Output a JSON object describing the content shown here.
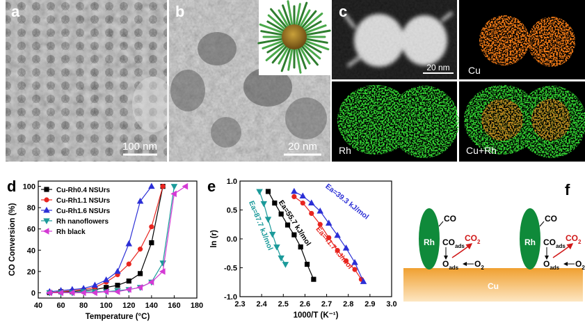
{
  "panels": {
    "a": {
      "label": "a",
      "scale_bar": "100 nm"
    },
    "b": {
      "label": "b",
      "scale_bar": "20 nm"
    },
    "c": {
      "label": "c",
      "scale_bar": "20 nm",
      "maps": [
        "Cu",
        "Rh",
        "Cu+Rh"
      ]
    },
    "d": {
      "label": "d"
    },
    "e": {
      "label": "e"
    },
    "f": {
      "label": "f"
    }
  },
  "chart_data": [
    {
      "type": "line",
      "xlabel": "Temperature (°C)",
      "ylabel": "CO Conversion (%)",
      "xlim": [
        40,
        180
      ],
      "xticks": [
        40,
        60,
        80,
        100,
        120,
        140,
        160,
        180
      ],
      "ylim": [
        -5,
        105
      ],
      "yticks": [
        0,
        20,
        40,
        60,
        80,
        100
      ],
      "legend": "upper left",
      "series": [
        {
          "name": "Cu-Rh0.4 NSUrs",
          "color": "#000000",
          "marker": "square",
          "x": [
            50,
            60,
            70,
            80,
            90,
            100,
            110,
            120,
            130,
            140,
            150
          ],
          "values": [
            0,
            1,
            1,
            2,
            3,
            5,
            7,
            11,
            18,
            47,
            100
          ]
        },
        {
          "name": "Cu-Rh1.1 NSUrs",
          "color": "#e8251f",
          "marker": "circle",
          "x": [
            50,
            60,
            70,
            80,
            90,
            100,
            110,
            120,
            130,
            140,
            150
          ],
          "values": [
            0,
            1,
            2,
            3,
            5,
            10,
            17,
            27,
            41,
            62,
            100
          ]
        },
        {
          "name": "Cu-Rh1.6 NSUrs",
          "color": "#2b2fd6",
          "marker": "triangle-up",
          "x": [
            50,
            60,
            70,
            80,
            90,
            100,
            110,
            120,
            130,
            140
          ],
          "values": [
            1,
            2,
            3,
            4,
            7,
            12,
            20,
            46,
            86,
            100
          ]
        },
        {
          "name": "Rh nanoflowers",
          "color": "#1b9a9a",
          "marker": "triangle-down",
          "x": [
            50,
            60,
            70,
            80,
            90,
            100,
            110,
            120,
            130,
            140,
            150,
            160
          ],
          "values": [
            0,
            0,
            0,
            1,
            1,
            1,
            2,
            3,
            5,
            10,
            28,
            100
          ]
        },
        {
          "name": "Rh black",
          "color": "#d43ad4",
          "marker": "triangle-left",
          "x": [
            50,
            60,
            70,
            80,
            90,
            100,
            110,
            120,
            130,
            140,
            150,
            160,
            170
          ],
          "values": [
            0,
            0,
            0,
            0,
            0,
            1,
            1,
            3,
            5,
            10,
            20,
            93,
            100
          ]
        }
      ]
    },
    {
      "type": "line",
      "xlabel": "1000/T (K⁻¹)",
      "ylabel": "ln (r)",
      "xlim": [
        2.3,
        3.0
      ],
      "xticks": [
        2.3,
        2.4,
        2.5,
        2.6,
        2.7,
        2.8,
        2.9,
        {
          "value": 3,
          "label": "3.0"
        }
      ],
      "ylim": [
        -1,
        1
      ],
      "yticks": [
        {
          "value": -1,
          "label": "-1.0"
        },
        -0.5,
        {
          "value": 0,
          "label": "0.0"
        },
        0.5,
        {
          "value": 1,
          "label": "1.0"
        }
      ],
      "series": [
        {
          "color": "#1b9a9a",
          "marker": "triangle-down",
          "x": [
            2.39,
            2.41,
            2.43,
            2.45,
            2.47,
            2.49,
            2.51
          ],
          "values": [
            0.82,
            0.61,
            0.34,
            0.08,
            -0.14,
            -0.33,
            -0.44
          ]
        },
        {
          "color": "#000000",
          "marker": "square",
          "x": [
            2.43,
            2.46,
            2.49,
            2.52,
            2.55,
            2.58,
            2.61,
            2.64
          ],
          "values": [
            0.82,
            0.62,
            0.43,
            0.24,
            0.07,
            -0.14,
            -0.44,
            -0.7
          ]
        },
        {
          "color": "#e8251f",
          "marker": "circle",
          "x": [
            2.55,
            2.59,
            2.63,
            2.67,
            2.71,
            2.75,
            2.79,
            2.83,
            2.86
          ],
          "values": [
            0.73,
            0.62,
            0.44,
            0.25,
            0.02,
            -0.2,
            -0.38,
            -0.53,
            -0.7
          ]
        },
        {
          "color": "#2b2fd6",
          "marker": "triangle-up",
          "x": [
            2.55,
            2.59,
            2.63,
            2.67,
            2.71,
            2.75,
            2.79,
            2.83,
            2.87
          ],
          "values": [
            0.82,
            0.74,
            0.62,
            0.48,
            0.27,
            0.06,
            -0.16,
            -0.41,
            -0.74
          ]
        }
      ],
      "annotations": [
        "Ea=87.7 kJ/mol",
        "Ea=55.7 kJ/mol",
        "Ea=41.7 kJ/mol",
        "Ea=39.3 kJ/mol"
      ]
    }
  ],
  "schematic": {
    "metal": "Rh",
    "gas": "CO",
    "adsorbed_co": [
      "CO",
      "ads"
    ],
    "product": [
      "CO",
      "2"
    ],
    "adsorbed_o": [
      "O",
      "ads"
    ],
    "oxygen": [
      "O",
      "2"
    ],
    "substrate": "Cu"
  }
}
